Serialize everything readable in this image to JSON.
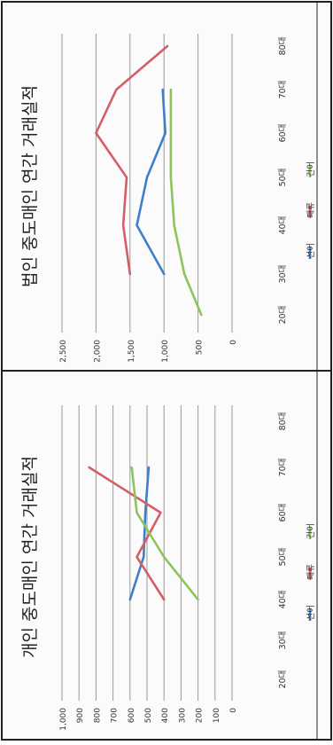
{
  "chart_data": [
    {
      "type": "line",
      "title": "개인 중도매인 연간 거래실적",
      "categories": [
        "20대",
        "30대",
        "40대",
        "50대",
        "60대",
        "70대",
        "80대"
      ],
      "ylim": [
        0,
        1000
      ],
      "yticks": [
        "0",
        "100",
        "200",
        "300",
        "400",
        "500",
        "600",
        "700",
        "800",
        "900",
        "1,000"
      ],
      "grid": true,
      "legend": "bottom",
      "series": [
        {
          "name": "선어",
          "color": "#3d7fc9",
          "points": [
            [
              2,
              600
            ],
            [
              3,
              520
            ],
            [
              4,
              510
            ],
            [
              5,
              490
            ]
          ]
        },
        {
          "name": "패류",
          "color": "#d35f66",
          "points": [
            [
              2,
              400
            ],
            [
              3,
              560
            ],
            [
              4,
              420
            ],
            [
              5,
              840
            ]
          ]
        },
        {
          "name": "건어",
          "color": "#8cc45b",
          "points": [
            [
              2,
              200
            ],
            [
              3,
              400
            ],
            [
              4,
              560
            ],
            [
              5,
              590
            ]
          ]
        }
      ]
    },
    {
      "type": "line",
      "title": "법인 중도매인 연간 거래실적",
      "categories": [
        "20대",
        "30대",
        "40대",
        "50대",
        "60대",
        "70대",
        "80대"
      ],
      "ylim": [
        0,
        2500
      ],
      "yticks": [
        "0",
        "500",
        "1,000",
        "1,500",
        "2,000",
        "2,500"
      ],
      "grid": true,
      "legend": "bottom",
      "series": [
        {
          "name": "선어",
          "color": "#3d7fc9",
          "points": [
            [
              1,
              1000
            ],
            [
              2,
              1400
            ],
            [
              3,
              1250
            ],
            [
              4,
              980
            ],
            [
              5,
              1020
            ]
          ]
        },
        {
          "name": "패류",
          "color": "#d35f66",
          "points": [
            [
              1,
              1500
            ],
            [
              2,
              1600
            ],
            [
              3,
              1550
            ],
            [
              4,
              2000
            ],
            [
              5,
              1700
            ],
            [
              6,
              950
            ]
          ]
        },
        {
          "name": "건어",
          "color": "#8cc45b",
          "points": [
            [
              0,
              450
            ],
            [
              1,
              700
            ],
            [
              2,
              850
            ],
            [
              3,
              900
            ],
            [
              4,
              900
            ],
            [
              5,
              900
            ]
          ]
        }
      ]
    }
  ]
}
